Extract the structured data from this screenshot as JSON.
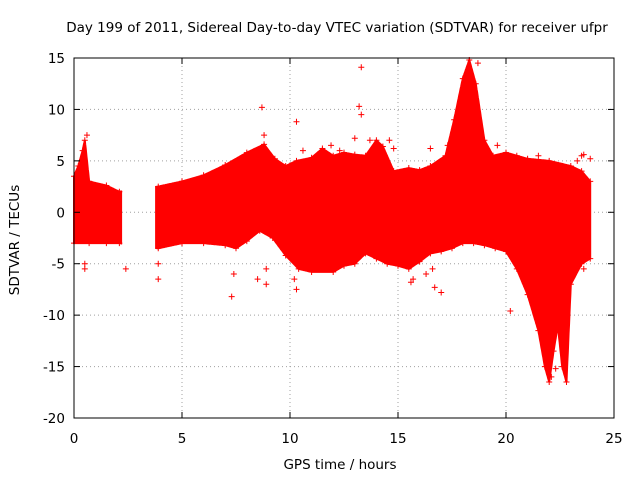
{
  "chart_data": {
    "type": "scatter",
    "title": "Day 199 of 2011, Sidereal Day-to-day VTEC variation (SDTVAR) for receiver ufpr",
    "xlabel": "GPS time / hours",
    "ylabel": "SDTVAR / TECUs",
    "xlim": [
      0,
      25
    ],
    "ylim": [
      -20,
      15
    ],
    "xticks": [
      0,
      5,
      10,
      15,
      20,
      25
    ],
    "yticks": [
      -20,
      -15,
      -10,
      -5,
      0,
      5,
      10,
      15
    ],
    "grid": true,
    "marker": "+",
    "series": [
      {
        "name": "ufpr",
        "color": "#ff0000",
        "band_upper": [
          [
            0.0,
            3.5
          ],
          [
            0.2,
            4.5
          ],
          [
            0.4,
            6.0
          ],
          [
            0.5,
            7.0
          ],
          [
            0.7,
            3.0
          ],
          [
            1.5,
            2.6
          ],
          [
            2.1,
            2.0
          ],
          [
            3.9,
            2.5
          ],
          [
            5.0,
            3.0
          ],
          [
            6.0,
            3.6
          ],
          [
            7.0,
            4.6
          ],
          [
            8.0,
            5.8
          ],
          [
            8.8,
            6.6
          ],
          [
            9.3,
            5.2
          ],
          [
            9.8,
            4.5
          ],
          [
            10.3,
            5.0
          ],
          [
            11.0,
            5.3
          ],
          [
            11.5,
            6.2
          ],
          [
            12.0,
            5.5
          ],
          [
            12.5,
            5.8
          ],
          [
            13.0,
            5.6
          ],
          [
            13.5,
            5.5
          ],
          [
            14.0,
            7.0
          ],
          [
            14.3,
            6.4
          ],
          [
            14.8,
            4.0
          ],
          [
            15.5,
            4.3
          ],
          [
            16.0,
            4.1
          ],
          [
            16.5,
            4.5
          ],
          [
            17.2,
            5.5
          ],
          [
            17.6,
            9.0
          ],
          [
            18.0,
            13.0
          ],
          [
            18.3,
            14.8
          ],
          [
            18.6,
            12.5
          ],
          [
            19.0,
            7.0
          ],
          [
            19.4,
            5.5
          ],
          [
            20.0,
            5.8
          ],
          [
            20.5,
            5.5
          ],
          [
            21.0,
            5.2
          ],
          [
            22.0,
            5.0
          ],
          [
            23.0,
            4.5
          ],
          [
            23.5,
            4.0
          ],
          [
            23.9,
            3.0
          ]
        ],
        "band_lower": [
          [
            0.0,
            -3.0
          ],
          [
            0.7,
            -3.0
          ],
          [
            1.5,
            -3.0
          ],
          [
            2.1,
            -3.0
          ],
          [
            3.9,
            -3.5
          ],
          [
            5.0,
            -3.0
          ],
          [
            6.0,
            -3.0
          ],
          [
            7.0,
            -3.2
          ],
          [
            7.5,
            -3.5
          ],
          [
            8.0,
            -2.8
          ],
          [
            8.6,
            -1.8
          ],
          [
            9.2,
            -2.5
          ],
          [
            9.8,
            -4.2
          ],
          [
            10.4,
            -5.5
          ],
          [
            11.0,
            -5.8
          ],
          [
            12.0,
            -5.8
          ],
          [
            12.5,
            -5.2
          ],
          [
            13.0,
            -5.0
          ],
          [
            13.5,
            -4.0
          ],
          [
            14.0,
            -4.5
          ],
          [
            14.5,
            -5.0
          ],
          [
            15.0,
            -5.2
          ],
          [
            15.5,
            -5.5
          ],
          [
            16.0,
            -4.8
          ],
          [
            16.5,
            -4.0
          ],
          [
            17.0,
            -3.8
          ],
          [
            17.5,
            -3.5
          ],
          [
            18.0,
            -3.0
          ],
          [
            18.5,
            -3.0
          ],
          [
            19.0,
            -3.2
          ],
          [
            19.5,
            -3.5
          ],
          [
            20.0,
            -3.8
          ],
          [
            20.5,
            -5.5
          ],
          [
            21.0,
            -8.0
          ],
          [
            21.5,
            -11.5
          ],
          [
            21.8,
            -15.0
          ],
          [
            22.0,
            -16.5
          ],
          [
            22.2,
            -13.5
          ],
          [
            22.4,
            -11.0
          ],
          [
            22.6,
            -15.0
          ],
          [
            22.8,
            -16.5
          ],
          [
            23.0,
            -7.0
          ],
          [
            23.5,
            -5.0
          ],
          [
            23.9,
            -4.5
          ]
        ],
        "outliers": [
          [
            0.5,
            -5.5
          ],
          [
            0.5,
            -5.0
          ],
          [
            0.6,
            7.5
          ],
          [
            2.4,
            -5.5
          ],
          [
            3.9,
            -6.5
          ],
          [
            3.9,
            -5.0
          ],
          [
            7.3,
            -8.2
          ],
          [
            7.4,
            -6.0
          ],
          [
            8.5,
            -6.5
          ],
          [
            8.7,
            10.2
          ],
          [
            8.8,
            7.5
          ],
          [
            8.9,
            -5.5
          ],
          [
            8.9,
            -7.0
          ],
          [
            10.3,
            8.8
          ],
          [
            10.3,
            -7.5
          ],
          [
            10.2,
            -6.5
          ],
          [
            10.6,
            6.0
          ],
          [
            11.9,
            6.5
          ],
          [
            12.3,
            6.0
          ],
          [
            13.3,
            14.1
          ],
          [
            13.2,
            10.3
          ],
          [
            13.3,
            9.5
          ],
          [
            13.0,
            7.2
          ],
          [
            13.7,
            7.0
          ],
          [
            14.6,
            7.0
          ],
          [
            14.8,
            6.2
          ],
          [
            15.6,
            -6.8
          ],
          [
            15.7,
            -6.5
          ],
          [
            16.3,
            -6.0
          ],
          [
            16.5,
            6.2
          ],
          [
            16.6,
            -5.5
          ],
          [
            16.7,
            -7.3
          ],
          [
            17.0,
            -7.8
          ],
          [
            17.3,
            6.5
          ],
          [
            18.7,
            14.5
          ],
          [
            19.6,
            6.5
          ],
          [
            20.2,
            -9.6
          ],
          [
            22.1,
            -16.0
          ],
          [
            22.3,
            -15.2
          ],
          [
            23.0,
            -5.0
          ],
          [
            23.3,
            5.0
          ],
          [
            23.5,
            5.5
          ],
          [
            23.6,
            -5.5
          ],
          [
            23.9,
            5.2
          ],
          [
            21.5,
            5.5
          ],
          [
            23.6,
            5.6
          ]
        ],
        "gap_hours": [
          [
            2.2,
            3.8
          ]
        ]
      }
    ]
  }
}
